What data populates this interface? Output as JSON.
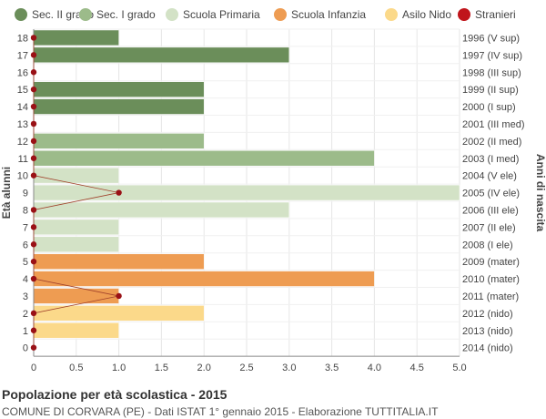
{
  "chart_data": {
    "type": "bar",
    "orientation": "horizontal",
    "ylabel_left": "Età alunni",
    "ylabel_right": "Anni di nascita",
    "xlim": [
      0,
      5
    ],
    "xticks": [
      "0",
      "0.5",
      "1.0",
      "1.5",
      "2.0",
      "2.5",
      "3.0",
      "3.5",
      "4.0",
      "4.5",
      "5.0"
    ],
    "grid": true,
    "legend_position": "top",
    "legend": [
      {
        "label": "Sec. II grado",
        "color": "#6b8e5a"
      },
      {
        "label": "Sec. I grado",
        "color": "#9cbb8a"
      },
      {
        "label": "Scuola Primaria",
        "color": "#d3e2c6"
      },
      {
        "label": "Scuola Infanzia",
        "color": "#ee9c52"
      },
      {
        "label": "Asilo Nido",
        "color": "#fbd98a"
      },
      {
        "label": "Stranieri",
        "color": "#c0151b"
      }
    ],
    "rows": [
      {
        "age": "18",
        "birth": "1996 (V sup)",
        "value": 1,
        "category": "Sec. II grado",
        "stranieri": 0
      },
      {
        "age": "17",
        "birth": "1997 (IV sup)",
        "value": 3,
        "category": "Sec. II grado",
        "stranieri": 0
      },
      {
        "age": "16",
        "birth": "1998 (III sup)",
        "value": 0,
        "category": "Sec. II grado",
        "stranieri": 0
      },
      {
        "age": "15",
        "birth": "1999 (II sup)",
        "value": 2,
        "category": "Sec. II grado",
        "stranieri": 0
      },
      {
        "age": "14",
        "birth": "2000 (I sup)",
        "value": 2,
        "category": "Sec. II grado",
        "stranieri": 0
      },
      {
        "age": "13",
        "birth": "2001 (III med)",
        "value": 0,
        "category": "Sec. I grado",
        "stranieri": 0
      },
      {
        "age": "12",
        "birth": "2002 (II med)",
        "value": 2,
        "category": "Sec. I grado",
        "stranieri": 0
      },
      {
        "age": "11",
        "birth": "2003 (I med)",
        "value": 4,
        "category": "Sec. I grado",
        "stranieri": 0
      },
      {
        "age": "10",
        "birth": "2004 (V ele)",
        "value": 1,
        "category": "Scuola Primaria",
        "stranieri": 0
      },
      {
        "age": "9",
        "birth": "2005 (IV ele)",
        "value": 5,
        "category": "Scuola Primaria",
        "stranieri": 1
      },
      {
        "age": "8",
        "birth": "2006 (III ele)",
        "value": 3,
        "category": "Scuola Primaria",
        "stranieri": 0
      },
      {
        "age": "7",
        "birth": "2007 (II ele)",
        "value": 1,
        "category": "Scuola Primaria",
        "stranieri": 0
      },
      {
        "age": "6",
        "birth": "2008 (I ele)",
        "value": 1,
        "category": "Scuola Primaria",
        "stranieri": 0
      },
      {
        "age": "5",
        "birth": "2009 (mater)",
        "value": 2,
        "category": "Scuola Infanzia",
        "stranieri": 0
      },
      {
        "age": "4",
        "birth": "2010 (mater)",
        "value": 4,
        "category": "Scuola Infanzia",
        "stranieri": 0
      },
      {
        "age": "3",
        "birth": "2011 (mater)",
        "value": 1,
        "category": "Scuola Infanzia",
        "stranieri": 1
      },
      {
        "age": "2",
        "birth": "2012 (nido)",
        "value": 2,
        "category": "Asilo Nido",
        "stranieri": 0
      },
      {
        "age": "1",
        "birth": "2013 (nido)",
        "value": 1,
        "category": "Asilo Nido",
        "stranieri": 0
      },
      {
        "age": "0",
        "birth": "2014 (nido)",
        "value": 0,
        "category": "Asilo Nido",
        "stranieri": 0
      }
    ]
  },
  "caption": {
    "title": "Popolazione per età scolastica - 2015",
    "subtitle": "COMUNE DI CORVARA (PE) - Dati ISTAT 1° gennaio 2015 - Elaborazione TUTTITALIA.IT"
  }
}
